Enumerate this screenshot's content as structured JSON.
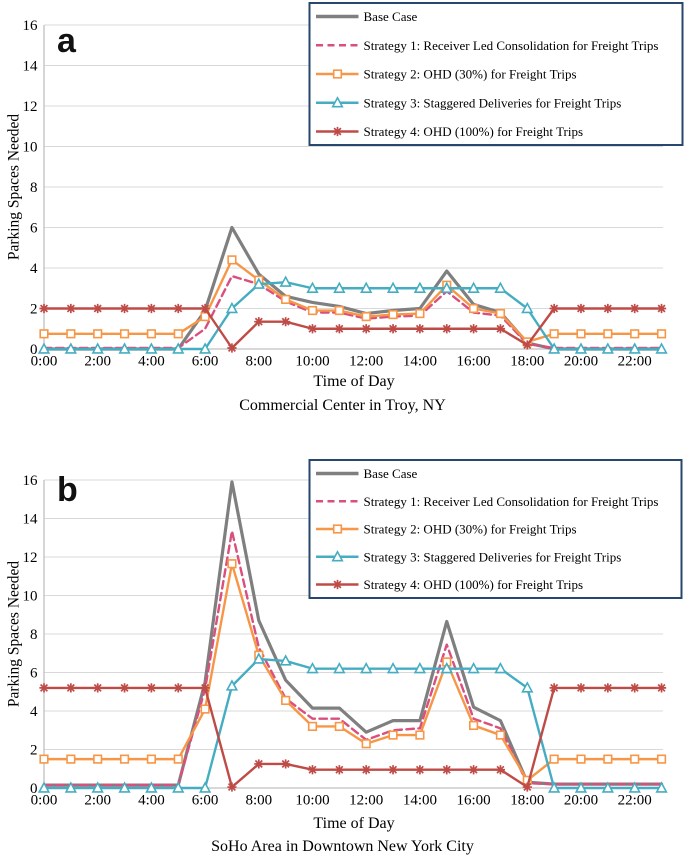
{
  "colors": {
    "background": "#ffffff",
    "grid": "#d9d9d9",
    "axis": "#c0c0c0",
    "legend_border": "#27476e",
    "text": "#000000",
    "base_gray": "#7f7f7f",
    "strategy1_pink": "#d94f7d",
    "strategy2_orange": "#f79646",
    "strategy3_teal": "#45adc2",
    "strategy4_red": "#bf4b47"
  },
  "chart_data": [
    {
      "type": "line",
      "panel_label": "a",
      "subtitle": "Commercial Center in Troy, NY",
      "xlabel": "Time of Day",
      "ylabel": "Parking Spaces Needed",
      "ylim": [
        0,
        16
      ],
      "ytick_labels": [
        "0",
        "2",
        "4",
        "6",
        "8",
        "10",
        "12",
        "14",
        "16"
      ],
      "x_tick_labels": [
        "0:00",
        "2:00",
        "4:00",
        "6:00",
        "8:00",
        "10:00",
        "12:00",
        "14:00",
        "16:00",
        "18:00",
        "20:00",
        "22:00"
      ],
      "x_hourly": [
        "0:00",
        "1:00",
        "2:00",
        "3:00",
        "4:00",
        "5:00",
        "6:00",
        "7:00",
        "8:00",
        "9:00",
        "10:00",
        "11:00",
        "12:00",
        "13:00",
        "14:00",
        "15:00",
        "16:00",
        "17:00",
        "18:00",
        "19:00",
        "20:00",
        "21:00",
        "22:00",
        "23:00"
      ],
      "grid": true,
      "legend_position": "top-right",
      "series": [
        {
          "name": "Base Case",
          "color": "#7f7f7f",
          "line": "solid",
          "marker": "none",
          "width": 3.2,
          "values": [
            0,
            0,
            0,
            0,
            0,
            0,
            1.9,
            6.0,
            3.7,
            2.6,
            2.3,
            2.1,
            1.75,
            1.9,
            2.0,
            3.85,
            2.2,
            1.8,
            0.3,
            0,
            0,
            0,
            0,
            0
          ]
        },
        {
          "name": "Strategy 1: Receiver Led Consolidation for Freight Trips",
          "color": "#d94f7d",
          "line": "dashed",
          "marker": "none",
          "width": 2.4,
          "values": [
            0.05,
            0.05,
            0.05,
            0.05,
            0.05,
            0.05,
            1.0,
            3.6,
            3.2,
            2.35,
            1.8,
            1.8,
            1.5,
            1.6,
            1.65,
            2.85,
            1.8,
            1.65,
            0.25,
            0.05,
            0.05,
            0.05,
            0.05,
            0.05
          ]
        },
        {
          "name": "Strategy 2: OHD (30%) for Freight Trips",
          "color": "#f79646",
          "line": "solid",
          "marker": "square",
          "width": 2.4,
          "values": [
            0.75,
            0.75,
            0.75,
            0.75,
            0.75,
            0.75,
            1.6,
            4.4,
            3.4,
            2.45,
            1.9,
            1.9,
            1.6,
            1.7,
            1.75,
            3.15,
            2.0,
            1.75,
            0.35,
            0.75,
            0.75,
            0.75,
            0.75,
            0.75
          ]
        },
        {
          "name": "Strategy 3: Staggered Deliveries for Freight Trips",
          "color": "#45adc2",
          "line": "solid",
          "marker": "triangle",
          "width": 2.4,
          "values": [
            0,
            0,
            0,
            0,
            0,
            0,
            0,
            2.0,
            3.2,
            3.3,
            3.0,
            3.0,
            3.0,
            3.0,
            3.0,
            3.0,
            3.0,
            3.0,
            2.0,
            0,
            0,
            0,
            0,
            0
          ]
        },
        {
          "name": "Strategy 4: OHD (100%) for Freight Trips",
          "color": "#bf4b47",
          "line": "solid",
          "marker": "asterisk",
          "width": 2.4,
          "values": [
            2,
            2,
            2,
            2,
            2,
            2,
            2,
            0.05,
            1.35,
            1.35,
            1.0,
            1.0,
            1.0,
            1.0,
            1.0,
            1.0,
            1.0,
            1.0,
            0.2,
            2,
            2,
            2,
            2,
            2
          ]
        }
      ]
    },
    {
      "type": "line",
      "panel_label": "b",
      "subtitle": "SoHo Area in Downtown New York City",
      "xlabel": "Time of Day",
      "ylabel": "Parking Spaces Needed",
      "ylim": [
        0,
        16
      ],
      "ytick_labels": [
        "0",
        "2",
        "4",
        "6",
        "8",
        "10",
        "12",
        "14",
        "16"
      ],
      "x_tick_labels": [
        "0:00",
        "2:00",
        "4:00",
        "6:00",
        "8:00",
        "10:00",
        "12:00",
        "14:00",
        "16:00",
        "18:00",
        "20:00",
        "22:00"
      ],
      "x_hourly": [
        "0:00",
        "1:00",
        "2:00",
        "3:00",
        "4:00",
        "5:00",
        "6:00",
        "7:00",
        "8:00",
        "9:00",
        "10:00",
        "11:00",
        "12:00",
        "13:00",
        "14:00",
        "15:00",
        "16:00",
        "17:00",
        "18:00",
        "19:00",
        "20:00",
        "21:00",
        "22:00",
        "23:00"
      ],
      "grid": true,
      "legend_position": "top-right",
      "series": [
        {
          "name": "Base Case",
          "color": "#7f7f7f",
          "line": "solid",
          "marker": "none",
          "width": 3.2,
          "values": [
            0.15,
            0.15,
            0.15,
            0.15,
            0.15,
            0.15,
            5.5,
            15.9,
            8.7,
            5.6,
            4.15,
            4.15,
            2.9,
            3.5,
            3.5,
            8.65,
            4.2,
            3.5,
            0.3,
            0.2,
            0.2,
            0.2,
            0.2,
            0.2
          ]
        },
        {
          "name": "Strategy 1: Receiver Led Consolidation for Freight Trips",
          "color": "#d94f7d",
          "line": "dashed",
          "marker": "none",
          "width": 2.4,
          "values": [
            0.15,
            0.15,
            0.15,
            0.15,
            0.15,
            0.15,
            5.15,
            13.35,
            7.3,
            4.65,
            3.6,
            3.6,
            2.5,
            3.0,
            3.1,
            7.45,
            3.6,
            3.1,
            0.25,
            0.2,
            0.2,
            0.2,
            0.2,
            0.2
          ]
        },
        {
          "name": "Strategy 2: OHD (30%) for Freight Trips",
          "color": "#f79646",
          "line": "solid",
          "marker": "square",
          "width": 2.4,
          "values": [
            1.5,
            1.5,
            1.5,
            1.5,
            1.5,
            1.5,
            4.1,
            11.65,
            6.9,
            4.55,
            3.2,
            3.2,
            2.3,
            2.75,
            2.75,
            6.55,
            3.25,
            2.75,
            0.4,
            1.5,
            1.5,
            1.5,
            1.5,
            1.5
          ]
        },
        {
          "name": "Strategy 3: Staggered Deliveries for Freight Trips",
          "color": "#45adc2",
          "line": "solid",
          "marker": "triangle",
          "width": 2.4,
          "values": [
            0,
            0,
            0,
            0,
            0,
            0,
            0,
            5.3,
            6.7,
            6.6,
            6.2,
            6.2,
            6.2,
            6.2,
            6.2,
            6.2,
            6.2,
            6.2,
            5.2,
            0,
            0,
            0,
            0,
            0
          ]
        },
        {
          "name": "Strategy 4: OHD (100%) for Freight Trips",
          "color": "#bf4b47",
          "line": "solid",
          "marker": "asterisk",
          "width": 2.4,
          "values": [
            5.2,
            5.2,
            5.2,
            5.2,
            5.2,
            5.2,
            5.2,
            0.05,
            1.25,
            1.25,
            0.95,
            0.95,
            0.95,
            0.95,
            0.95,
            0.95,
            0.95,
            0.95,
            0.05,
            5.2,
            5.2,
            5.2,
            5.2,
            5.2
          ]
        }
      ]
    }
  ]
}
